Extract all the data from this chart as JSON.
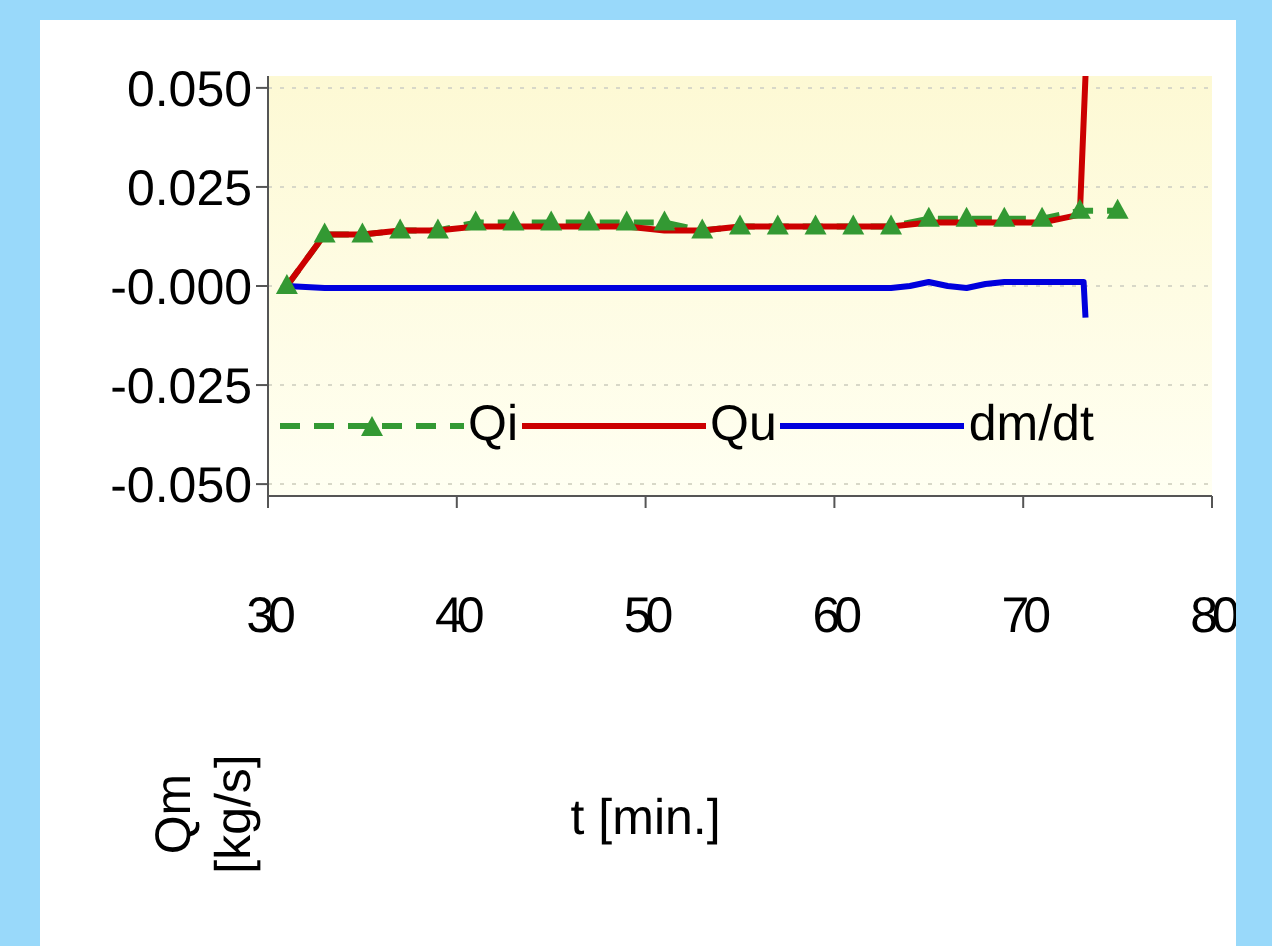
{
  "chart_data": {
    "type": "line",
    "xlabel": "t [min.]",
    "ylabel": "Qm [kg/s]",
    "xlim": [
      30,
      80
    ],
    "xticks": [
      30,
      40,
      50,
      60,
      70,
      80
    ],
    "ylim": [
      -0.053,
      0.053
    ],
    "yticks": [
      {
        "value": 0.05,
        "label": "0.050"
      },
      0.025,
      {
        "value": 0,
        "label": "-0.000"
      },
      -0.025,
      {
        "value": -0.05,
        "label": "-0.050"
      }
    ],
    "grid": "y",
    "legend": "bottom",
    "series": [
      {
        "name": "Qi",
        "color": "#339933",
        "marker": "triangle",
        "line_style": "dashed",
        "x": [
          31,
          33,
          35,
          37,
          39,
          41,
          43,
          45,
          47,
          49,
          51,
          53,
          55,
          57,
          59,
          61,
          63,
          65,
          67,
          69,
          71,
          73,
          75
        ],
        "values": [
          0,
          0.013,
          0.013,
          0.014,
          0.014,
          0.016,
          0.016,
          0.016,
          0.016,
          0.016,
          0.016,
          0.014,
          0.015,
          0.015,
          0.015,
          0.015,
          0.015,
          0.017,
          0.017,
          0.017,
          0.017,
          0.019,
          0.019
        ]
      },
      {
        "name": "Qu",
        "color": "#cc0000",
        "marker": "none",
        "line_style": "solid",
        "x": [
          31,
          33,
          35,
          37,
          39,
          41,
          43,
          45,
          47,
          49,
          51,
          53,
          55,
          57,
          59,
          61,
          63,
          65,
          67,
          69,
          71,
          73,
          73.3
        ],
        "values": [
          0,
          0.013,
          0.013,
          0.014,
          0.014,
          0.015,
          0.015,
          0.015,
          0.015,
          0.015,
          0.014,
          0.014,
          0.015,
          0.015,
          0.015,
          0.015,
          0.015,
          0.016,
          0.016,
          0.016,
          0.016,
          0.018,
          0.053
        ]
      },
      {
        "name": "dm/dt",
        "color": "#0000dd",
        "marker": "none",
        "line_style": "solid",
        "x": [
          31,
          33,
          63,
          64,
          65,
          66,
          67,
          68,
          69,
          71,
          73,
          73.2,
          73.3
        ],
        "values": [
          0,
          -0.0005,
          -0.0005,
          0,
          0.001,
          0,
          -0.0005,
          0.0005,
          0.001,
          0.001,
          0.001,
          0.001,
          -0.008
        ]
      }
    ]
  }
}
